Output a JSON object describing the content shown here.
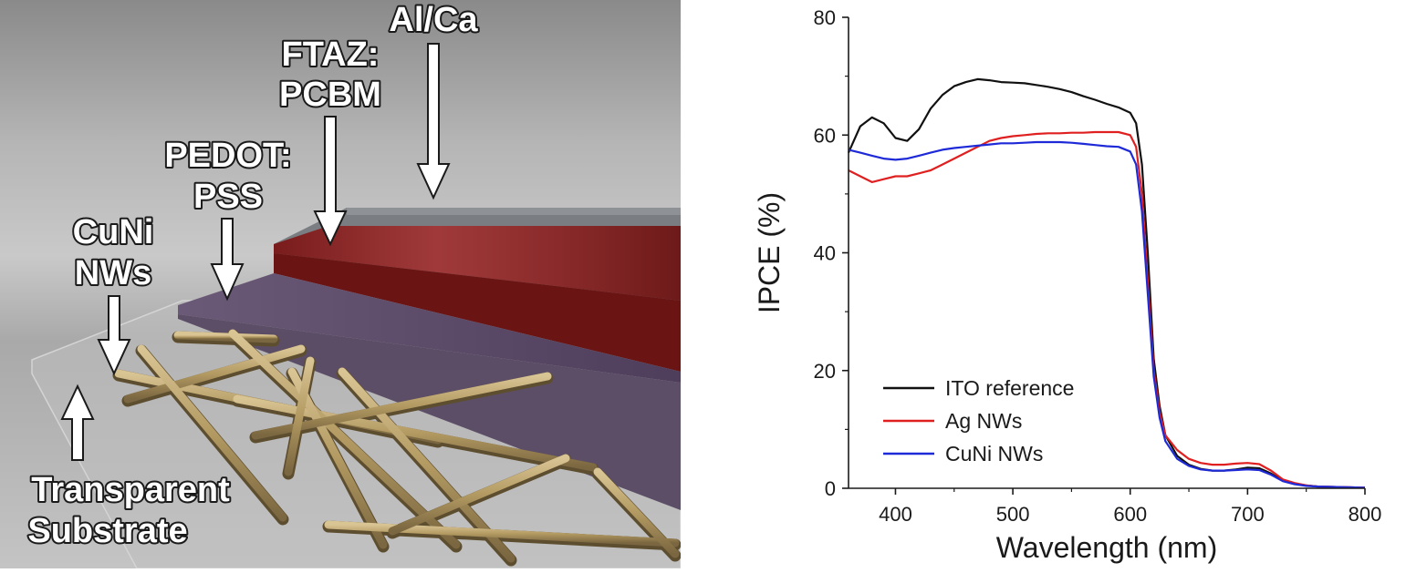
{
  "device": {
    "labels": {
      "electrode": "Al/Ca",
      "active_1": "FTAZ:",
      "active_2": "PCBM",
      "htl_1": "PEDOT:",
      "htl_2": "PSS",
      "nw_1": "CuNi",
      "nw_2": "NWs",
      "substrate_1": "Transparent",
      "substrate_2": "Substrate"
    },
    "colors": {
      "electrode": "#7c7f83",
      "active": "#8e2626",
      "htl": "#5a4a66",
      "nanowire": "#b19a66",
      "background": "#b9b9b9"
    }
  },
  "chart_data": {
    "type": "line",
    "xlabel": "Wavelength (nm)",
    "ylabel": "IPCE (%)",
    "xlim": [
      360,
      800
    ],
    "ylim": [
      0,
      80
    ],
    "xticks": [
      400,
      500,
      600,
      700,
      800
    ],
    "yticks": [
      0,
      20,
      40,
      60,
      80
    ],
    "legend_position": "bottom-left",
    "grid": false,
    "series": [
      {
        "name": "ITO reference",
        "color": "#111111",
        "x": [
          360,
          370,
          380,
          390,
          400,
          410,
          420,
          430,
          440,
          450,
          460,
          470,
          480,
          490,
          500,
          510,
          520,
          530,
          540,
          550,
          560,
          570,
          580,
          590,
          600,
          605,
          610,
          615,
          620,
          625,
          630,
          640,
          650,
          660,
          670,
          680,
          690,
          700,
          710,
          720,
          730,
          740,
          750,
          760,
          780,
          800
        ],
        "y": [
          57,
          61.5,
          63,
          62,
          59.5,
          59,
          61,
          64.5,
          66.8,
          68.3,
          69,
          69.5,
          69.3,
          69,
          68.9,
          68.8,
          68.5,
          68.2,
          67.8,
          67.3,
          66.6,
          66,
          65.3,
          64.7,
          63.8,
          62,
          55,
          40,
          22,
          14,
          9,
          5.5,
          4,
          3.3,
          3,
          3,
          3.2,
          3.5,
          3.4,
          2.5,
          1.3,
          0.8,
          0.5,
          0.3,
          0.2,
          0.1
        ]
      },
      {
        "name": "Ag NWs",
        "color": "#e02020",
        "x": [
          360,
          370,
          380,
          390,
          400,
          410,
          420,
          430,
          440,
          450,
          460,
          470,
          480,
          490,
          500,
          510,
          520,
          530,
          540,
          550,
          560,
          570,
          580,
          590,
          600,
          605,
          610,
          615,
          620,
          625,
          630,
          640,
          650,
          660,
          670,
          680,
          690,
          700,
          710,
          720,
          730,
          740,
          750,
          760,
          780,
          800
        ],
        "y": [
          54,
          53,
          52,
          52.5,
          53,
          53,
          53.5,
          54,
          55,
          56,
          57,
          58,
          59,
          59.5,
          59.8,
          60,
          60.2,
          60.3,
          60.3,
          60.4,
          60.4,
          60.5,
          60.5,
          60.5,
          60,
          58,
          50,
          35,
          20,
          13,
          9,
          6.5,
          5,
          4.3,
          4,
          4,
          4.2,
          4.3,
          4.1,
          3,
          1.5,
          0.9,
          0.5,
          0.3,
          0.2,
          0.1
        ]
      },
      {
        "name": "CuNi NWs",
        "color": "#1e2ad8",
        "x": [
          360,
          370,
          380,
          390,
          400,
          410,
          420,
          430,
          440,
          450,
          460,
          470,
          480,
          490,
          500,
          510,
          520,
          530,
          540,
          550,
          560,
          570,
          580,
          590,
          600,
          605,
          610,
          615,
          620,
          625,
          630,
          640,
          650,
          660,
          670,
          680,
          690,
          700,
          710,
          720,
          730,
          740,
          750,
          760,
          780,
          800
        ],
        "y": [
          57.5,
          57,
          56.5,
          56,
          55.8,
          56,
          56.5,
          57,
          57.5,
          57.8,
          58,
          58.2,
          58.4,
          58.6,
          58.6,
          58.7,
          58.8,
          58.8,
          58.8,
          58.7,
          58.5,
          58.3,
          58.1,
          58,
          57.2,
          55,
          47,
          33,
          19,
          12,
          8,
          5,
          3.8,
          3.2,
          3,
          3,
          3.1,
          3.2,
          3.1,
          2.3,
          1.2,
          0.7,
          0.4,
          0.3,
          0.2,
          0.1
        ]
      }
    ]
  }
}
